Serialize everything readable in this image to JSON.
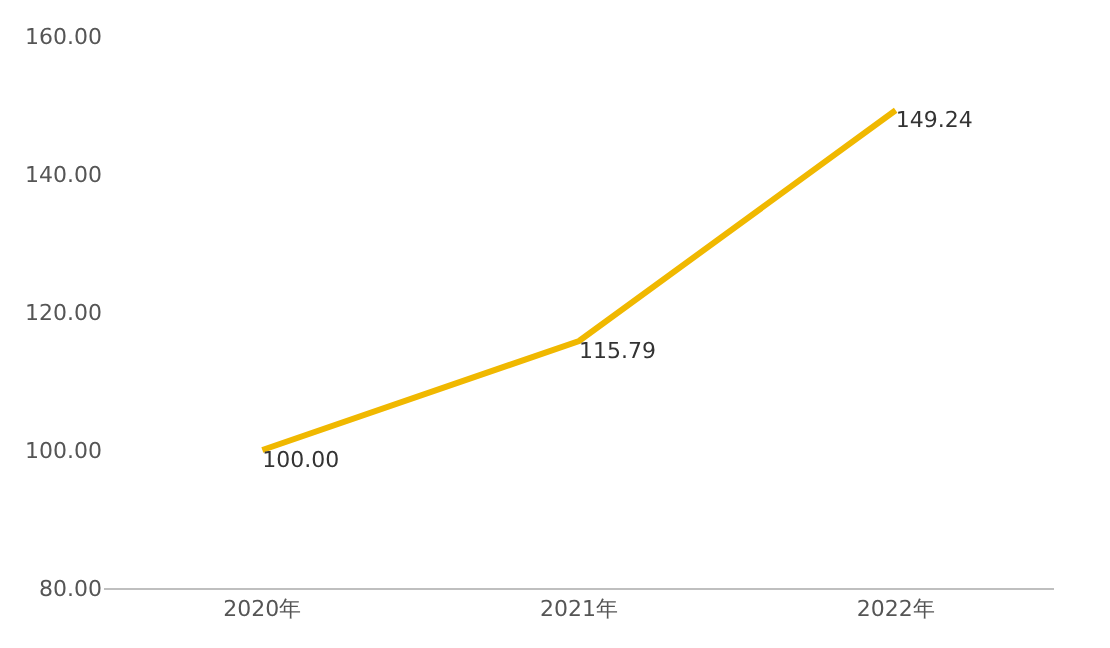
{
  "chart_data": {
    "type": "line",
    "categories": [
      "2020年",
      "2021年",
      "2022年"
    ],
    "series": [
      {
        "color": "#f0b800",
        "values": [
          100,
          115.79,
          149.24
        ],
        "value_labels": [
          "100.00",
          "115.79",
          "149.24"
        ]
      }
    ],
    "ylim": [
      80,
      160
    ],
    "yticks": [
      {
        "value": 80,
        "label": "80.00"
      },
      {
        "value": 100,
        "label": "100.00"
      },
      {
        "value": 120,
        "label": "120.00"
      },
      {
        "value": 140,
        "label": "140.00"
      },
      {
        "value": 160,
        "label": "160.00"
      }
    ],
    "legend": false,
    "marker": "none",
    "line_style": "solid"
  }
}
